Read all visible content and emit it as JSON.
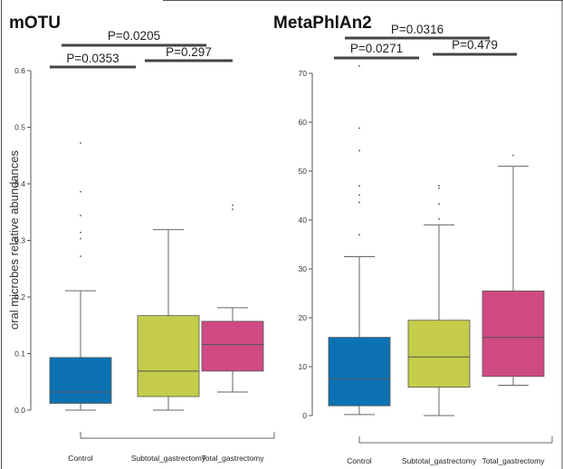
{
  "chart_data": [
    {
      "type": "boxplot",
      "title": "mOTU",
      "ylabel": "oral microbes relative abundances",
      "ylim": [
        0,
        0.6
      ],
      "yticks": [
        "0.0",
        "0.1",
        "0.2",
        "0.3",
        "0.4",
        "0.5",
        "0.6"
      ],
      "categories": [
        "Control",
        "Subtotal_gastrectomy",
        "Total_gastrectomy"
      ],
      "colors": [
        "#0d72b2",
        "#c5cc4a",
        "#cf4a83"
      ],
      "boxes": [
        {
          "whisker_low": 0.0,
          "q1": 0.012,
          "median": 0.032,
          "q3": 0.093,
          "whisker_high": 0.211,
          "outliers": [
            0.472,
            0.386,
            0.344,
            0.314,
            0.303,
            0.272
          ]
        },
        {
          "whisker_low": 0.0,
          "q1": 0.024,
          "median": 0.069,
          "q3": 0.167,
          "whisker_high": 0.319,
          "outliers": []
        },
        {
          "whisker_low": 0.032,
          "q1": 0.069,
          "median": 0.116,
          "q3": 0.157,
          "whisker_high": 0.181,
          "outliers": [
            0.362,
            0.355
          ]
        }
      ],
      "comparisons": [
        {
          "groups": [
            0,
            2
          ],
          "label": "P=0.0205"
        },
        {
          "groups": [
            0,
            1
          ],
          "label": "P=0.0353"
        },
        {
          "groups": [
            1,
            2
          ],
          "label": "P=0.297"
        }
      ]
    },
    {
      "type": "boxplot",
      "title": "MetaPhlAn2",
      "ylabel": "",
      "ylim": [
        0,
        70
      ],
      "yticks": [
        "0",
        "10",
        "20",
        "30",
        "40",
        "50",
        "60",
        "70"
      ],
      "categories": [
        "Control",
        "Subtotal_gastrectomy",
        "Total_gastrectomy"
      ],
      "colors": [
        "#0d72b2",
        "#c5cc4a",
        "#cf4a83"
      ],
      "boxes": [
        {
          "whisker_low": 0.2,
          "q1": 2.0,
          "median": 7.5,
          "q3": 16.0,
          "whisker_high": 32.5,
          "outliers": [
            71.5,
            58.8,
            54.2,
            47.0,
            45.1,
            43.6,
            37.0
          ]
        },
        {
          "whisker_low": 0.0,
          "q1": 5.8,
          "median": 12.0,
          "q3": 19.5,
          "whisker_high": 39.0,
          "outliers": [
            47.0,
            46.5,
            43.3,
            40.2
          ]
        },
        {
          "whisker_low": 6.2,
          "q1": 8.0,
          "median": 16.0,
          "q3": 25.5,
          "whisker_high": 51.0,
          "outliers": [
            53.2
          ]
        }
      ],
      "comparisons": [
        {
          "groups": [
            0,
            2
          ],
          "label": "P=0.0316"
        },
        {
          "groups": [
            0,
            1
          ],
          "label": "P=0.0271"
        },
        {
          "groups": [
            1,
            2
          ],
          "label": "P=0.479"
        }
      ]
    }
  ]
}
